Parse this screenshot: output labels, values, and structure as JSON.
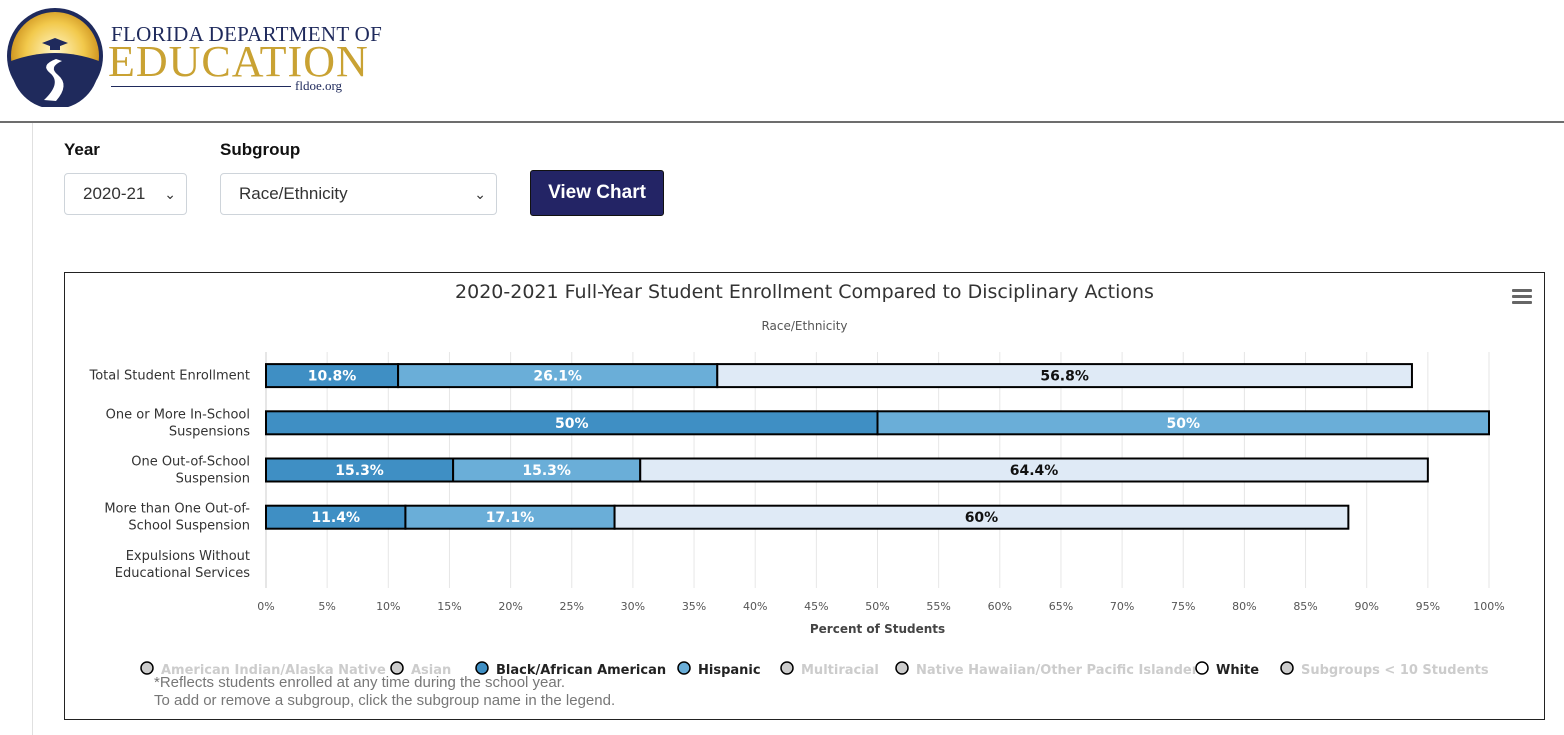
{
  "header": {
    "logo_line1": "FLORIDA DEPARTMENT OF",
    "logo_line2": "EDUCATION",
    "logo_url": "fldoe.org"
  },
  "controls": {
    "year_label": "Year",
    "year_value": "2020-21",
    "subgroup_label": "Subgroup",
    "subgroup_value": "Race/Ethnicity",
    "view_button": "View Chart"
  },
  "notes": {
    "line1": "*Reflects students enrolled at any time during the school year.",
    "line2": "To add or remove a subgroup, click the subgroup name in the legend."
  },
  "chart_data": {
    "type": "bar",
    "orientation": "horizontal",
    "stacked": true,
    "title": "2020-2021 Full-Year Student Enrollment Compared to Disciplinary Actions",
    "subtitle": "Race/Ethnicity",
    "xlabel": "Percent of Students",
    "ylabel": "",
    "xlim": [
      0,
      100
    ],
    "x_ticks": [
      "0%",
      "5%",
      "10%",
      "15%",
      "20%",
      "25%",
      "30%",
      "35%",
      "40%",
      "45%",
      "50%",
      "55%",
      "60%",
      "65%",
      "70%",
      "75%",
      "80%",
      "85%",
      "90%",
      "95%",
      "100%"
    ],
    "grid": true,
    "categories": [
      [
        "Total Student Enrollment"
      ],
      [
        "One or More In-School",
        "Suspensions"
      ],
      [
        "One Out-of-School",
        "Suspension"
      ],
      [
        "More than One Out-of-",
        "School Suspension"
      ],
      [
        "Expulsions Without",
        "Educational Services"
      ]
    ],
    "series": [
      {
        "name": "Black/African American",
        "color": "#3f8fc4",
        "label_color": "#ffffff",
        "values": [
          10.8,
          50,
          15.3,
          11.4,
          null
        ],
        "labels": [
          "10.8%",
          "50%",
          "15.3%",
          "11.4%",
          ""
        ]
      },
      {
        "name": "Hispanic",
        "color": "#6aaed8",
        "label_color": "#ffffff",
        "values": [
          26.1,
          50,
          15.3,
          17.1,
          null
        ],
        "labels": [
          "26.1%",
          "50%",
          "15.3%",
          "17.1%",
          ""
        ]
      },
      {
        "name": "White",
        "color": "#dfeaf6",
        "label_color": "#111111",
        "values": [
          56.8,
          null,
          64.4,
          60,
          null
        ],
        "labels": [
          "56.8%",
          "",
          "64.4%",
          "60%",
          ""
        ]
      }
    ],
    "legend": {
      "placement": "bottom",
      "items": [
        {
          "name": "American Indian/Alaska Native",
          "active": false,
          "color": "#cccccc"
        },
        {
          "name": "Asian",
          "active": false,
          "color": "#cccccc"
        },
        {
          "name": "Black/African American",
          "active": true,
          "color": "#3f8fc4"
        },
        {
          "name": "Hispanic",
          "active": true,
          "color": "#6aaed8"
        },
        {
          "name": "Multiracial",
          "active": false,
          "color": "#cccccc"
        },
        {
          "name": "Native Hawaiian/Other Pacific Islander",
          "active": false,
          "color": "#cccccc"
        },
        {
          "name": "White",
          "active": true,
          "color": "#ffffff"
        },
        {
          "name": "Subgroups < 10 Students",
          "active": false,
          "color": "#cccccc"
        }
      ]
    }
  }
}
